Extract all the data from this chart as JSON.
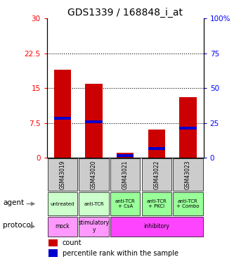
{
  "title": "GDS1339 / 168848_i_at",
  "samples": [
    "GSM43019",
    "GSM43020",
    "GSM43021",
    "GSM43022",
    "GSM43023"
  ],
  "count_values": [
    19,
    16,
    1,
    6,
    13
  ],
  "percentile_values_left_scale": [
    8.5,
    7.8,
    0.4,
    2.0,
    6.3
  ],
  "ylim_left": [
    0,
    30
  ],
  "ylim_right": [
    0,
    100
  ],
  "yticks_left": [
    0,
    7.5,
    15,
    22.5,
    30
  ],
  "yticks_right": [
    0,
    25,
    50,
    75,
    100
  ],
  "ytick_labels_left": [
    "0",
    "7.5",
    "15",
    "22.5",
    "30"
  ],
  "ytick_labels_right": [
    "0",
    "25",
    "50",
    "75",
    "100%"
  ],
  "agent_labels": [
    "untreated",
    "anti-TCR",
    "anti-TCR\n+ CsA",
    "anti-TCR\n+ PKCi",
    "anti-TCR\n+ Combo"
  ],
  "agent_colors": [
    "#ccffcc",
    "#ccffcc",
    "#99ff99",
    "#99ff99",
    "#99ff99"
  ],
  "protocol_segments": [
    [
      0,
      1,
      "mock",
      "#ff99ff"
    ],
    [
      1,
      2,
      "stimulatory\ny",
      "#ff99ff"
    ],
    [
      2,
      5,
      "inhibitory",
      "#ff44ff"
    ]
  ],
  "bar_color_count": "#cc0000",
  "bar_color_percentile": "#0000cc",
  "gsm_bg_color": "#cccccc",
  "bar_width": 0.55
}
